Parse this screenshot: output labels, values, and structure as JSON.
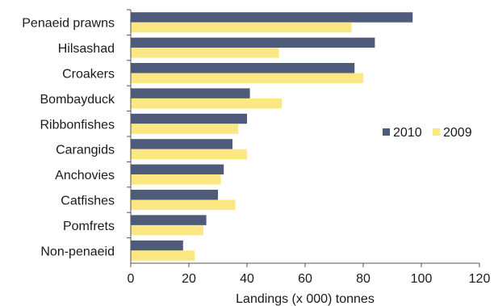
{
  "chart_data": {
    "type": "bar",
    "orientation": "horizontal",
    "categories": [
      "Penaeid prawns",
      "Hilsashad",
      "Croakers",
      "Bombayduck",
      "Ribbonfishes",
      "Carangids",
      "Anchovies",
      "Catfishes",
      "Pomfrets",
      "Non-penaeid"
    ],
    "series": [
      {
        "name": "2010",
        "color": "#4f5b7a",
        "values": [
          97,
          84,
          77,
          41,
          40,
          35,
          32,
          30,
          26,
          18
        ]
      },
      {
        "name": "2009",
        "color": "#fce883",
        "values": [
          76,
          51,
          80,
          52,
          37,
          40,
          31,
          36,
          25,
          22
        ]
      }
    ],
    "xlabel": "Landings (x 000) tonnes",
    "xlim": [
      0,
      120
    ],
    "xticks": [
      0,
      20,
      40,
      60,
      80,
      100,
      120
    ],
    "grid": false,
    "legend_position": "right"
  }
}
